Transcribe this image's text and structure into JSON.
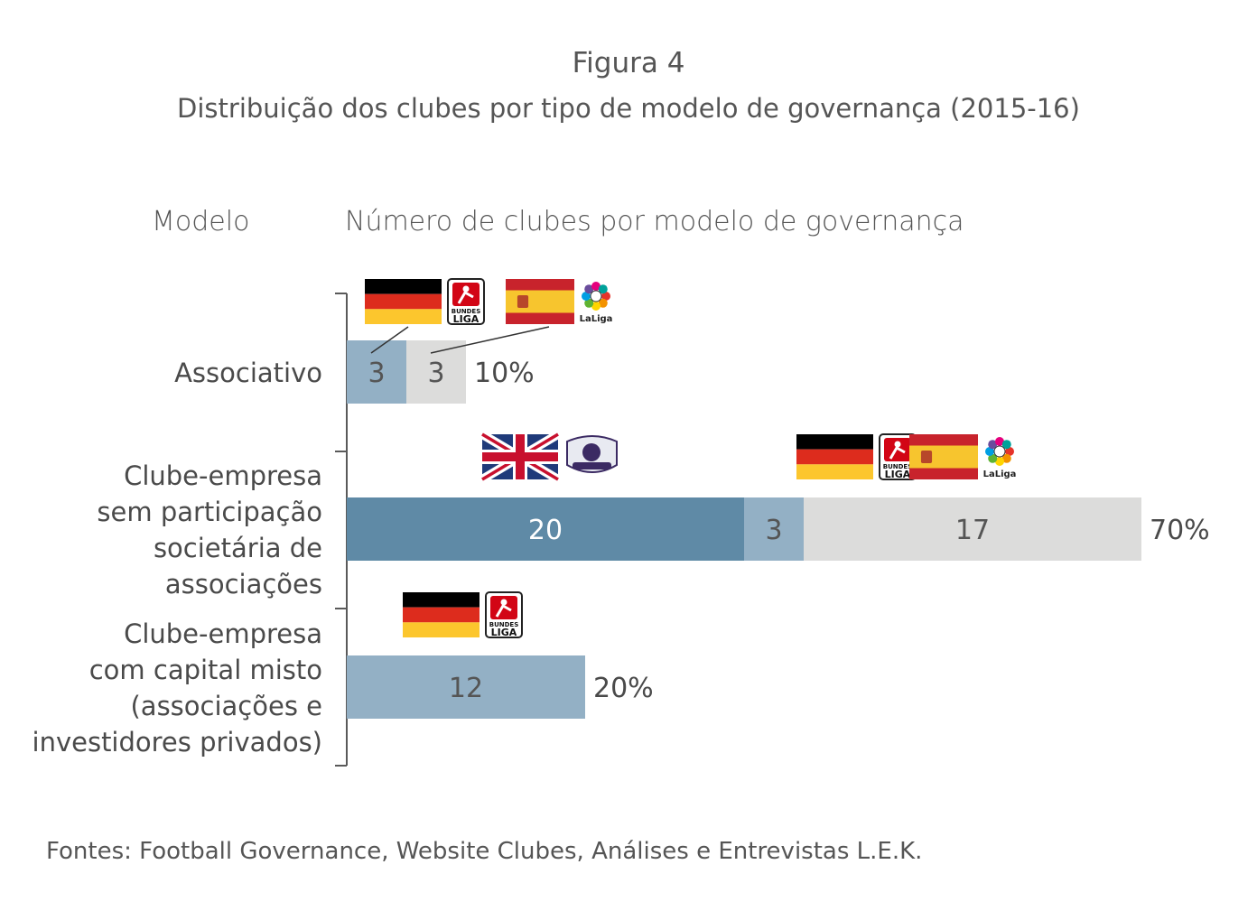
{
  "figure_number": "Figura 4",
  "figure_title": "Distribuição dos clubes por tipo de modelo de governança (2015-16)",
  "column_headers": {
    "model": "Modelo",
    "count": "Número de clubes por modelo de governança"
  },
  "sources": "Fontes: Football Governance, Website Clubes, Análises e Entrevistas L.E.K.",
  "colors": {
    "england": "#5f8aa6",
    "germany": "#93b0c5",
    "spain": "#dcdcdb",
    "bracket": "#5a5a5a"
  },
  "league_logos": {
    "bundesliga": "BUNDES LIGA",
    "premier_league": "",
    "laliga": "LaLiga"
  },
  "chart_data": {
    "type": "bar",
    "orientation": "horizontal",
    "stacked": true,
    "categories": [
      [
        "Associativo"
      ],
      [
        "Clube-empresa",
        "sem participação",
        "societária de",
        "associações"
      ],
      [
        "Clube-empresa",
        "com capital misto",
        "(associações e",
        "investidores privados)"
      ]
    ],
    "series": [
      {
        "key": "england",
        "values": [
          0,
          20,
          0
        ],
        "icons": [
          "uk-flag-icon",
          "premier-league-icon"
        ]
      },
      {
        "key": "germany",
        "values": [
          3,
          3,
          12
        ],
        "icons": [
          "germany-flag-icon",
          "bundesliga-icon"
        ]
      },
      {
        "key": "spain",
        "values": [
          3,
          17,
          0
        ],
        "icons": [
          "spain-flag-icon",
          "laliga-icon"
        ]
      }
    ],
    "totals_percent": [
      "10%",
      "70%",
      "20%"
    ],
    "xlim": [
      0,
      40
    ]
  }
}
